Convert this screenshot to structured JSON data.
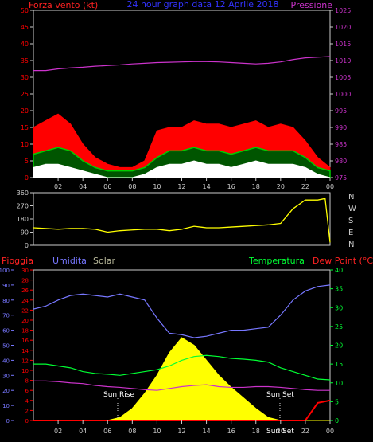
{
  "header": {
    "left": "Forza vento",
    "left_unit": "(kt)",
    "center": "24 hour graph data 12 Aprile 2018",
    "right": "Pressione"
  },
  "colors": {
    "bg": "#000000",
    "wind_red": "#ff0000",
    "wind_green": "#00cc00",
    "wind_white": "#ffffff",
    "pressure": "#cc33cc",
    "dir": "#ffff00",
    "rain": "#ff0000",
    "hum": "#7777ff",
    "temp": "#00ff33",
    "dew": "#cc33cc",
    "solar": "#ffff00",
    "axis": "#cccccc"
  },
  "time_ticks": [
    "02",
    "04",
    "06",
    "08",
    "10",
    "12",
    "14",
    "16",
    "18",
    "20",
    "22",
    "00"
  ],
  "chart_data": [
    {
      "type": "line",
      "title": "24 hour graph data 12 Aprile 2018",
      "xlabel": "",
      "x": [
        0,
        1,
        2,
        3,
        4,
        5,
        6,
        7,
        8,
        9,
        10,
        11,
        12,
        13,
        14,
        15,
        16,
        17,
        18,
        19,
        20,
        21,
        22,
        23,
        24
      ],
      "ylabel_left": "Forza vento (kt)",
      "ylim_left": [
        0,
        50
      ],
      "yticks_left": [
        0,
        5,
        10,
        15,
        20,
        25,
        30,
        35,
        40,
        45,
        50
      ],
      "ylabel_right": "Pressione",
      "ylim_right": [
        975,
        1025
      ],
      "yticks_right": [
        975,
        980,
        985,
        990,
        995,
        1000,
        1005,
        1010,
        1015,
        1020,
        1025
      ],
      "series": [
        {
          "name": "Forza vento",
          "axis": "left",
          "style": "gust",
          "values": [
            15,
            17,
            19,
            16,
            10,
            6,
            4,
            3,
            3,
            5,
            14,
            15,
            15,
            17,
            16,
            16,
            15,
            16,
            17,
            15,
            16,
            15,
            11,
            6,
            3
          ]
        },
        {
          "name": "",
          "axis": "left",
          "style": "avg",
          "values": [
            7,
            8,
            9,
            8,
            5,
            3,
            2,
            2,
            2,
            3,
            6,
            8,
            8,
            9,
            8,
            8,
            7,
            8,
            9,
            8,
            8,
            8,
            6,
            3,
            2
          ]
        },
        {
          "name": "",
          "axis": "left",
          "style": "min",
          "values": [
            3,
            4,
            4,
            3,
            2,
            1,
            0,
            0,
            0,
            1,
            3,
            4,
            4,
            5,
            4,
            4,
            3,
            4,
            5,
            4,
            4,
            4,
            3,
            1,
            0
          ]
        },
        {
          "name": "Pressione",
          "axis": "right",
          "style": "pressure",
          "values": [
            1007,
            1007,
            1007.5,
            1007.8,
            1008,
            1008.3,
            1008.5,
            1008.7,
            1009,
            1009.2,
            1009.4,
            1009.5,
            1009.6,
            1009.7,
            1009.7,
            1009.6,
            1009.4,
            1009.2,
            1009,
            1009.2,
            1009.6,
            1010.3,
            1010.8,
            1011,
            1011.2
          ]
        }
      ]
    },
    {
      "type": "line",
      "ylabel_right": [
        "N",
        "W",
        "S",
        "E",
        "N"
      ],
      "ylim": [
        0,
        360
      ],
      "yticks": [
        0,
        90,
        180,
        270,
        360
      ],
      "x": [
        0,
        1,
        2,
        3,
        4,
        5,
        6,
        7,
        8,
        9,
        10,
        11,
        12,
        13,
        14,
        15,
        16,
        17,
        18,
        19,
        20,
        21,
        22,
        23,
        23.6,
        24
      ],
      "series": [
        {
          "name": "",
          "values": [
            120,
            115,
            110,
            115,
            115,
            110,
            90,
            100,
            105,
            110,
            110,
            100,
            110,
            130,
            120,
            120,
            125,
            130,
            135,
            140,
            150,
            250,
            310,
            310,
            320,
            20
          ]
        }
      ]
    },
    {
      "type": "area",
      "legend": [
        "Pioggia",
        "Umidita",
        "Solar",
        "Temperatura",
        "Dew Point (°C)"
      ],
      "ylim_rain": [
        0,
        30
      ],
      "yticks_rain": [
        0,
        2,
        4,
        6,
        8,
        10,
        12,
        14,
        16,
        18,
        20,
        22,
        24,
        26,
        28,
        30
      ],
      "ylim_hum": [
        0,
        100
      ],
      "yticks_hum": [
        0,
        10,
        20,
        30,
        40,
        50,
        60,
        70,
        80,
        90,
        100
      ],
      "ylim_temp": [
        0,
        40
      ],
      "yticks_temp": [
        0,
        5,
        10,
        15,
        20,
        25,
        30,
        35,
        40
      ],
      "annotations": [
        "Sun Rise",
        "Sun Set",
        "Sun Set"
      ],
      "x": [
        0,
        1,
        2,
        3,
        4,
        5,
        6,
        7,
        8,
        9,
        10,
        11,
        12,
        13,
        14,
        15,
        16,
        17,
        18,
        19,
        20,
        21,
        22,
        23,
        24
      ],
      "series": [
        {
          "name": "Umidita",
          "axis": "hum",
          "values": [
            74,
            76,
            80,
            83,
            84,
            83,
            82,
            84,
            82,
            80,
            68,
            58,
            57,
            55,
            56,
            58,
            60,
            60,
            61,
            62,
            70,
            80,
            86,
            89,
            90
          ]
        },
        {
          "name": "Temperatura",
          "axis": "temp",
          "values": [
            15,
            15,
            14.5,
            14,
            13,
            12.5,
            12.3,
            12,
            12.5,
            13,
            13.5,
            14.5,
            16,
            17,
            17.3,
            17,
            16.5,
            16.3,
            16,
            15.5,
            14,
            13,
            12,
            11,
            10.8
          ]
        },
        {
          "name": "Dew Point (°C)",
          "axis": "temp",
          "values": [
            10.5,
            10.5,
            10.3,
            10,
            9.8,
            9.3,
            9,
            8.8,
            8.5,
            8.2,
            8,
            8.5,
            9,
            9.3,
            9.5,
            9,
            8.8,
            8.8,
            9,
            9,
            8.8,
            8.5,
            8.2,
            8,
            8
          ]
        },
        {
          "name": "Pioggia",
          "axis": "rain",
          "values": [
            0,
            0,
            0,
            0,
            0,
            0,
            0,
            0,
            0,
            0,
            0,
            0,
            0,
            0,
            0,
            0,
            0,
            0,
            0,
            0,
            0,
            0,
            0,
            3.5,
            4
          ]
        },
        {
          "name": "Solar",
          "axis": "hum",
          "values": [
            0,
            0,
            0,
            0,
            0,
            0,
            0,
            2,
            8,
            18,
            30,
            45,
            55,
            50,
            40,
            30,
            22,
            15,
            8,
            2,
            0,
            0,
            0,
            0,
            0
          ]
        }
      ]
    }
  ]
}
